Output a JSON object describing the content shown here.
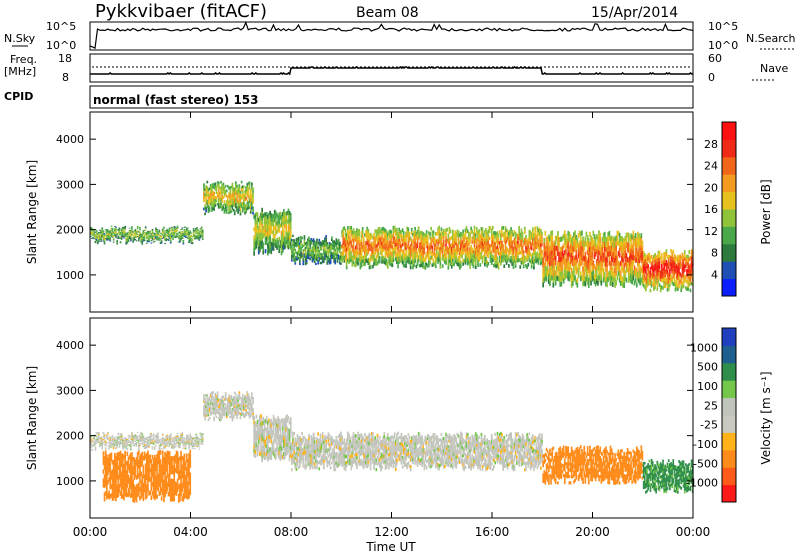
{
  "header": {
    "station": "Pykkvibaer (fitACF)",
    "beam": "Beam 08",
    "date": "15/Apr/2014"
  },
  "strips": {
    "nsky_label": "N.Sky",
    "nsearch_label": "N.Search",
    "noise_ticks": [
      "10^5",
      "10^0"
    ],
    "freq_label_1": "Freq.",
    "freq_label_2": "[MHz]",
    "freq_ticks": [
      "18",
      "8"
    ],
    "nave_label": "Nave",
    "nave_ticks": [
      "60",
      "0"
    ],
    "cpid_label": "CPID",
    "cpid_value": "normal (fast stereo) 153"
  },
  "colors": {
    "power": [
      "#0a1eff",
      "#1f4fb5",
      "#2c7a3c",
      "#4aa84a",
      "#8fc43a",
      "#e7c21f",
      "#f39a1f",
      "#f2661a",
      "#ef2a17",
      "#ff1111"
    ],
    "velocity": [
      "#ff1a1a",
      "#ff5a1a",
      "#ff8c1a",
      "#ffb21a",
      "#c9c9bf",
      "#bfc4bc",
      "#74c74a",
      "#2f8e4a",
      "#1f5f8f",
      "#1f3fbf"
    ]
  },
  "chart_data": [
    {
      "type": "heatmap",
      "title": "Power",
      "xlabel": "Time UT",
      "ylabel": "Slant Range [km]",
      "xlim": [
        "00:00",
        "24:00"
      ],
      "ylim": [
        180,
        4600
      ],
      "x_ticks": [
        "00:00",
        "04:00",
        "08:00",
        "12:00",
        "16:00",
        "20:00",
        "00:00"
      ],
      "y_ticks": [
        1000,
        2000,
        3000,
        4000
      ],
      "colorbar": {
        "label": "Power [dB]",
        "range": [
          0,
          32
        ],
        "ticks": [
          4,
          8,
          12,
          16,
          20,
          24,
          28
        ]
      },
      "bands": [
        {
          "start_h": 0.0,
          "end_h": 4.5,
          "r0": 1750,
          "r1": 2000,
          "value": 16
        },
        {
          "start_h": 4.5,
          "end_h": 6.5,
          "r0": 2400,
          "r1": 3000,
          "value": 20
        },
        {
          "start_h": 6.5,
          "end_h": 8.0,
          "r0": 1500,
          "r1": 2400,
          "value": 18
        },
        {
          "start_h": 8.0,
          "end_h": 10.0,
          "r0": 1300,
          "r1": 1800,
          "value": 14
        },
        {
          "start_h": 10.0,
          "end_h": 18.0,
          "r0": 1200,
          "r1": 2000,
          "value": 24
        },
        {
          "start_h": 18.0,
          "end_h": 22.0,
          "r0": 800,
          "r1": 1900,
          "value": 26
        },
        {
          "start_h": 22.0,
          "end_h": 24.0,
          "r0": 700,
          "r1": 1500,
          "value": 30
        }
      ]
    },
    {
      "type": "heatmap",
      "title": "Velocity",
      "xlabel": "Time UT",
      "ylabel": "Slant Range [km]",
      "xlim": [
        "00:00",
        "24:00"
      ],
      "ylim": [
        180,
        4600
      ],
      "x_ticks": [
        "00:00",
        "04:00",
        "08:00",
        "12:00",
        "16:00",
        "20:00",
        "00:00"
      ],
      "y_ticks": [
        1000,
        2000,
        3000,
        4000
      ],
      "colorbar": {
        "label": "Velocity [m s⁻¹]",
        "ticks": [
          1000,
          500,
          100,
          25,
          -25,
          -100,
          -500,
          -1000
        ]
      },
      "bands": [
        {
          "start_h": 0.0,
          "end_h": 4.5,
          "r0": 1750,
          "r1": 2000,
          "value": 0
        },
        {
          "start_h": 0.5,
          "end_h": 4.0,
          "r0": 600,
          "r1": 1600,
          "value": -300
        },
        {
          "start_h": 4.5,
          "end_h": 6.5,
          "r0": 2400,
          "r1": 2900,
          "value": 0
        },
        {
          "start_h": 6.5,
          "end_h": 8.0,
          "r0": 1500,
          "r1": 2400,
          "value": 0
        },
        {
          "start_h": 8.0,
          "end_h": 18.0,
          "r0": 1300,
          "r1": 2000,
          "value": 0
        },
        {
          "start_h": 18.0,
          "end_h": 22.0,
          "r0": 1000,
          "r1": 1700,
          "value": -200
        },
        {
          "start_h": 22.0,
          "end_h": 24.0,
          "r0": 800,
          "r1": 1400,
          "value": 120
        }
      ]
    }
  ]
}
